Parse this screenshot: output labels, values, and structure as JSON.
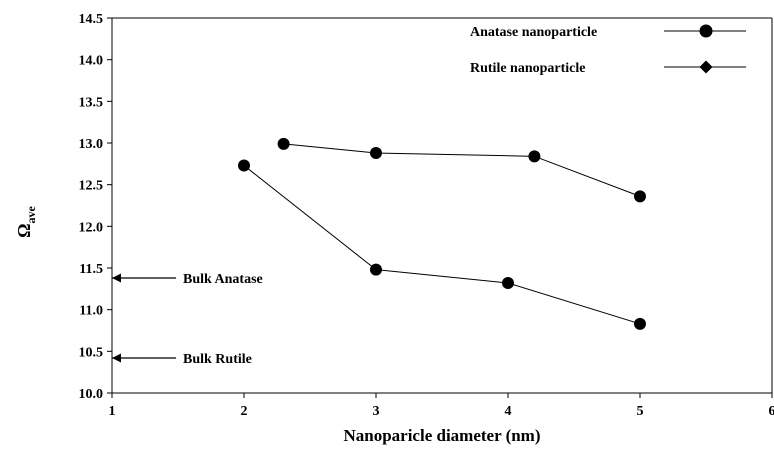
{
  "chart_data": {
    "type": "line",
    "title": "",
    "xlabel": "Nanoparicle diameter (nm)",
    "ylabel_main": "Ω",
    "ylabel_sub": "ave",
    "xlim": [
      1,
      6
    ],
    "ylim": [
      10.0,
      14.5
    ],
    "x_ticks": [
      1,
      2,
      3,
      4,
      5,
      6
    ],
    "y_ticks": [
      10.0,
      10.5,
      11.0,
      11.5,
      12.0,
      12.5,
      13.0,
      13.5,
      14.0,
      14.5
    ],
    "y_tick_labels": [
      "10.0",
      "10.5",
      "11.0",
      "11.5",
      "12.0",
      "12.5",
      "13.0",
      "13.5",
      "14.0",
      "14.5"
    ],
    "grid": false,
    "legend_position": "top-right",
    "series": [
      {
        "name": "Anatase nanoparticle",
        "marker": "circle",
        "color": "#000000",
        "x": [
          2.3,
          3,
          4.2,
          5
        ],
        "y": [
          12.99,
          12.88,
          12.84,
          12.36
        ]
      },
      {
        "name": "Rutile nanoparticle",
        "marker": "diamond",
        "color": "#000000",
        "x": [
          2,
          3,
          4,
          5
        ],
        "y": [
          12.73,
          11.48,
          11.32,
          10.83
        ]
      }
    ],
    "annotations": [
      {
        "text": "Bulk Anatase",
        "y": 11.38
      },
      {
        "text": "Bulk Rutile",
        "y": 10.42
      }
    ]
  }
}
